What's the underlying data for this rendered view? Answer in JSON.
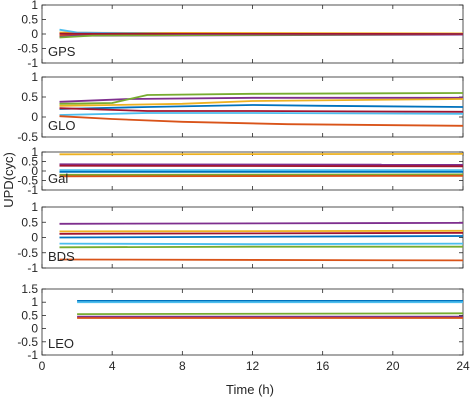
{
  "chart_data": {
    "type": "line",
    "xlabel": "Time (h)",
    "ylabel": "UPD(cyc)",
    "xlim": [
      0,
      24
    ],
    "xticks": [
      "0",
      "4",
      "8",
      "12",
      "16",
      "20",
      "24"
    ],
    "grid": false,
    "colors": [
      "#0072BD",
      "#D95319",
      "#EDB120",
      "#7E2F8E",
      "#77AC30",
      "#4DBEEE",
      "#A2142F"
    ],
    "panels": [
      {
        "label": "GPS",
        "ylim": [
          -1,
          1
        ],
        "yticks": [
          "1",
          "0.5",
          "0",
          "-0.5",
          "-1"
        ],
        "series": [
          {
            "color": "#0072BD",
            "x": [
              1,
              24
            ],
            "values": [
              0.02,
              0.0
            ]
          },
          {
            "color": "#D95319",
            "x": [
              1,
              3,
              6,
              24
            ],
            "values": [
              -0.05,
              -0.03,
              0.0,
              0.0
            ]
          },
          {
            "color": "#EDB120",
            "x": [
              1,
              3,
              24
            ],
            "values": [
              0.05,
              0.04,
              0.02
            ]
          },
          {
            "color": "#7E2F8E",
            "x": [
              1,
              2,
              24
            ],
            "values": [
              -0.1,
              -0.06,
              -0.02
            ]
          },
          {
            "color": "#77AC30",
            "x": [
              1,
              3,
              24
            ],
            "values": [
              -0.12,
              -0.05,
              0.0
            ]
          },
          {
            "color": "#4DBEEE",
            "x": [
              1,
              2,
              8,
              24
            ],
            "values": [
              0.15,
              0.05,
              0.0,
              0.0
            ]
          },
          {
            "color": "#A2142F",
            "x": [
              1,
              24
            ],
            "values": [
              0.01,
              0.0
            ]
          }
        ]
      },
      {
        "label": "GLO",
        "ylim": [
          -0.5,
          1
        ],
        "yticks": [
          "1",
          "0.5",
          "0",
          "-0.5"
        ],
        "series": [
          {
            "color": "#7E2F8E",
            "x": [
              1,
              5,
              12,
              24
            ],
            "values": [
              0.38,
              0.45,
              0.48,
              0.48
            ]
          },
          {
            "color": "#77AC30",
            "x": [
              1,
              4,
              5,
              6,
              12,
              24
            ],
            "values": [
              0.33,
              0.35,
              0.45,
              0.55,
              0.58,
              0.6
            ]
          },
          {
            "color": "#EDB120",
            "x": [
              1,
              4,
              8,
              12,
              24
            ],
            "values": [
              0.28,
              0.3,
              0.33,
              0.4,
              0.45
            ]
          },
          {
            "color": "#0072BD",
            "x": [
              1,
              6,
              12,
              16,
              24
            ],
            "values": [
              0.2,
              0.25,
              0.3,
              0.28,
              0.25
            ]
          },
          {
            "color": "#A2142F",
            "x": [
              1,
              6,
              12,
              24
            ],
            "values": [
              0.22,
              0.15,
              0.15,
              0.13
            ]
          },
          {
            "color": "#4DBEEE",
            "x": [
              1,
              6,
              12,
              24
            ],
            "values": [
              0.05,
              0.1,
              0.1,
              0.08
            ]
          },
          {
            "color": "#D95319",
            "x": [
              1,
              4,
              8,
              14,
              24
            ],
            "values": [
              0.02,
              -0.05,
              -0.12,
              -0.18,
              -0.22
            ]
          }
        ]
      },
      {
        "label": "Gal",
        "ylim": [
          -1,
          1
        ],
        "yticks": [
          "1",
          "0.5",
          "0",
          "-0.5",
          "-1"
        ],
        "series": [
          {
            "color": "#EDB120",
            "x": [
              1,
              24
            ],
            "values": [
              0.88,
              0.9
            ]
          },
          {
            "color": "#7E2F8E",
            "x": [
              1,
              24
            ],
            "values": [
              0.35,
              0.33
            ]
          },
          {
            "color": "#A2142F",
            "x": [
              1,
              24
            ],
            "values": [
              0.28,
              0.25
            ]
          },
          {
            "color": "#4DBEEE",
            "x": [
              1,
              24
            ],
            "values": [
              0.05,
              0.05
            ]
          },
          {
            "color": "#0072BD",
            "x": [
              1,
              24
            ],
            "values": [
              -0.05,
              -0.05
            ]
          },
          {
            "color": "#77AC30",
            "x": [
              1,
              24
            ],
            "values": [
              -0.2,
              -0.18
            ]
          },
          {
            "color": "#D95319",
            "x": [
              1,
              24
            ],
            "values": [
              -0.28,
              -0.25
            ]
          }
        ]
      },
      {
        "label": "BDS",
        "ylim": [
          -1,
          1
        ],
        "yticks": [
          "1",
          "0.5",
          "0",
          "-0.5",
          "-1"
        ],
        "series": [
          {
            "color": "#7E2F8E",
            "x": [
              1,
              24
            ],
            "values": [
              0.45,
              0.48
            ]
          },
          {
            "color": "#EDB120",
            "x": [
              1,
              24
            ],
            "values": [
              0.2,
              0.22
            ]
          },
          {
            "color": "#A2142F",
            "x": [
              1,
              24
            ],
            "values": [
              0.12,
              0.15
            ]
          },
          {
            "color": "#0072BD",
            "x": [
              1,
              24
            ],
            "values": [
              0.0,
              0.05
            ]
          },
          {
            "color": "#4DBEEE",
            "x": [
              1,
              12,
              24
            ],
            "values": [
              -0.2,
              -0.22,
              -0.2
            ]
          },
          {
            "color": "#77AC30",
            "x": [
              1,
              12,
              24
            ],
            "values": [
              -0.32,
              -0.3,
              -0.3
            ]
          },
          {
            "color": "#D95319",
            "x": [
              1,
              24
            ],
            "values": [
              -0.72,
              -0.75
            ]
          }
        ]
      },
      {
        "label": "LEO",
        "ylim": [
          -1,
          1.5
        ],
        "yticks": [
          "1.5",
          "1",
          "0.5",
          "0",
          "-0.5",
          "-1"
        ],
        "series": [
          {
            "color": "#0072BD",
            "x": [
              2,
              24
            ],
            "values": [
              1.05,
              1.05
            ]
          },
          {
            "color": "#4DBEEE",
            "x": [
              2,
              24
            ],
            "values": [
              1.0,
              1.0
            ]
          },
          {
            "color": "#77AC30",
            "x": [
              2,
              24
            ],
            "values": [
              0.55,
              0.58
            ]
          },
          {
            "color": "#7E2F8E",
            "x": [
              2,
              24
            ],
            "values": [
              0.45,
              0.45
            ]
          },
          {
            "color": "#D95319",
            "x": [
              2,
              24
            ],
            "values": [
              0.4,
              0.4
            ]
          }
        ]
      }
    ]
  }
}
